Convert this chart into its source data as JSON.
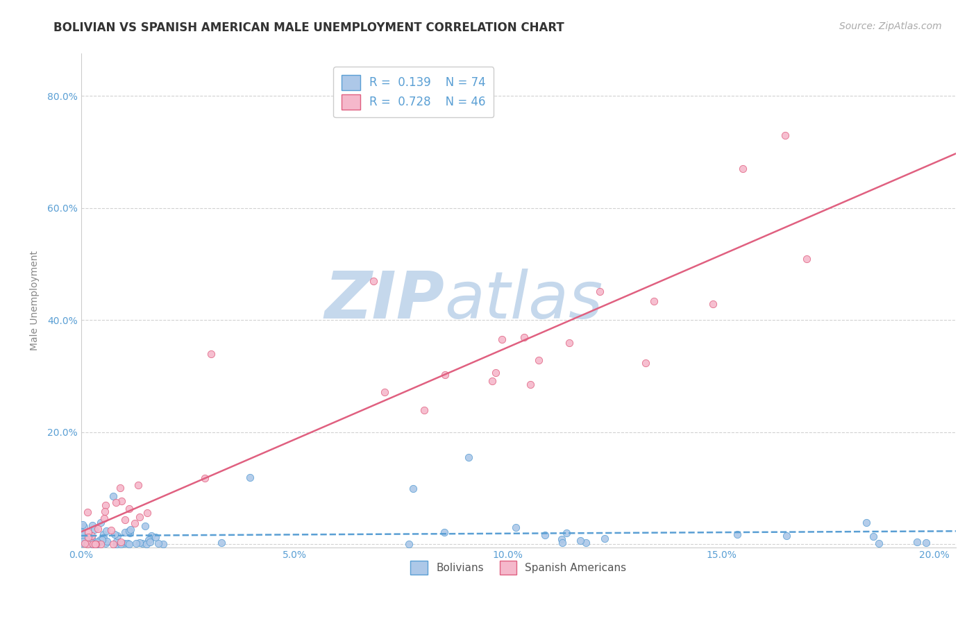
{
  "title": "BOLIVIAN VS SPANISH AMERICAN MALE UNEMPLOYMENT CORRELATION CHART",
  "source_text": "Source: ZipAtlas.com",
  "ylabel": "Male Unemployment",
  "watermark_zip": "ZIP",
  "watermark_atlas": "atlas",
  "xlim": [
    0.0,
    0.205
  ],
  "ylim": [
    -0.005,
    0.875
  ],
  "yticks": [
    0.0,
    0.2,
    0.4,
    0.6,
    0.8
  ],
  "xticks": [
    0.0,
    0.05,
    0.1,
    0.15,
    0.2
  ],
  "xtick_labels": [
    "0.0%",
    "5.0%",
    "10.0%",
    "15.0%",
    "20.0%"
  ],
  "ytick_labels": [
    "",
    "20.0%",
    "40.0%",
    "60.0%",
    "80.0%"
  ],
  "legend_r1": "R =  0.139",
  "legend_n1": "N = 74",
  "legend_r2": "R =  0.728",
  "legend_n2": "N = 46",
  "color_bolivians_fill": "#adc8e8",
  "color_bolivians_edge": "#5a9fd4",
  "color_spanish_fill": "#f5b8cb",
  "color_spanish_edge": "#e06080",
  "color_trend_bolivians": "#5a9fd4",
  "color_trend_spanish": "#e06080",
  "color_title": "#333333",
  "color_source": "#aaaaaa",
  "color_watermark_zip": "#c5d8ec",
  "color_watermark_atlas": "#c5d8ec",
  "color_axis_values": "#5a9fd4",
  "color_ylabel": "#888888",
  "background_color": "#ffffff",
  "grid_color": "#cccccc",
  "title_fontsize": 12,
  "tick_fontsize": 10,
  "source_fontsize": 10,
  "ylabel_fontsize": 10
}
